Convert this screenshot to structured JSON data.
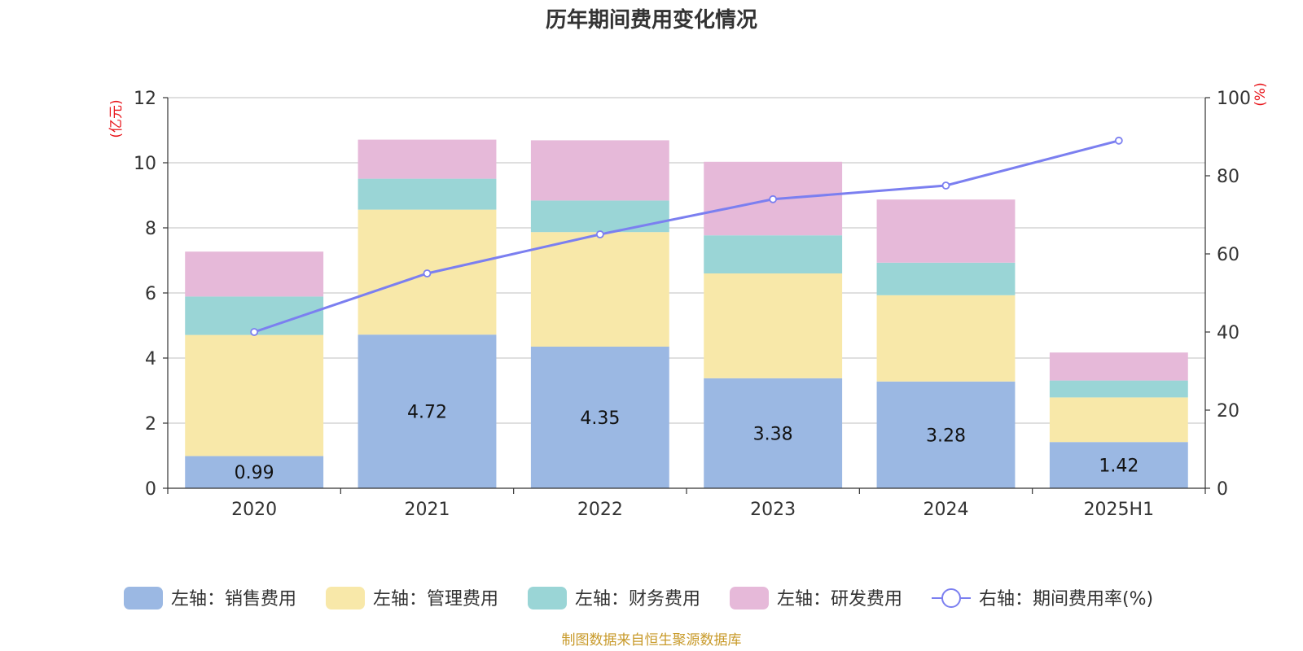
{
  "chart_data": {
    "type": "bar",
    "stacked": true,
    "title": "历年期间费用变化情况",
    "categories": [
      "2020",
      "2021",
      "2022",
      "2023",
      "2024",
      "2025H1"
    ],
    "left_axis": {
      "unit": "(亿元)",
      "ylim": [
        0,
        12
      ],
      "ticks": [
        "0",
        "2",
        "4",
        "6",
        "8",
        "10",
        "12"
      ]
    },
    "right_axis": {
      "unit": "(%)",
      "ylim": [
        0,
        100
      ],
      "ticks": [
        "0",
        "20",
        "40",
        "60",
        "80",
        "100"
      ]
    },
    "grid": true,
    "series": [
      {
        "name": "左轴：销售费用",
        "axis": "left",
        "color": "#9bb8e3",
        "values": [
          0.99,
          4.72,
          4.35,
          3.38,
          3.28,
          1.42
        ],
        "labels": [
          "0.99",
          "4.72",
          "4.35",
          "3.38",
          "3.28",
          "1.42"
        ]
      },
      {
        "name": "左轴：管理费用",
        "axis": "left",
        "color": "#f8e8a9",
        "values": [
          3.72,
          3.84,
          3.52,
          3.22,
          2.65,
          1.37
        ]
      },
      {
        "name": "左轴：财务费用",
        "axis": "left",
        "color": "#9ad5d6",
        "values": [
          1.18,
          0.95,
          0.97,
          1.17,
          1.0,
          0.52
        ]
      },
      {
        "name": "左轴：研发费用",
        "axis": "left",
        "color": "#e6b9d9",
        "values": [
          1.38,
          1.2,
          1.85,
          2.26,
          1.94,
          0.86
        ]
      },
      {
        "name": "右轴：期间费用率(%)",
        "axis": "right",
        "type": "line",
        "color": "#7b7ff0",
        "values": [
          40.0,
          55.0,
          65.0,
          74.0,
          77.5,
          89.0
        ]
      }
    ],
    "legend_position": "bottom"
  },
  "source": "制图数据来自恒生聚源数据库"
}
